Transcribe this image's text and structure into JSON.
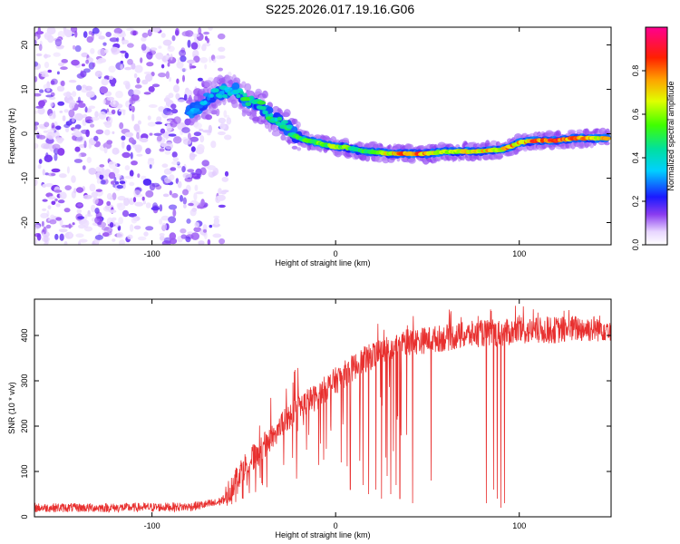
{
  "title": "S225.2026.017.19.16.G06",
  "colors": {
    "line": "#e8302f",
    "spectrum_noise": "#8a3cf0",
    "axis": "#000000"
  },
  "colorbar": {
    "label": "Normalized spectral amplitude",
    "ticks": [
      "0.0",
      "0.2",
      "0.4",
      "0.6",
      "0.8"
    ],
    "tick_values": [
      0.0,
      0.2,
      0.4,
      0.6,
      0.8
    ],
    "range": [
      0,
      1
    ]
  },
  "chart_data": [
    {
      "type": "heatmap",
      "name": "spectrogram",
      "xlabel": "Height of straight line (km)",
      "ylabel": "Frequency (Hz)",
      "xlim": [
        -164,
        150
      ],
      "ylim": [
        -25,
        24
      ],
      "xticks": [
        -100,
        0,
        100
      ],
      "xtick_labels": [
        "-100",
        "0",
        "100"
      ],
      "yticks": [
        -20,
        -10,
        0,
        10,
        20
      ],
      "ytick_labels": [
        "-20",
        "-10",
        "0",
        "10",
        "20"
      ],
      "noise_region_x": [
        -164,
        -70
      ],
      "ridge": {
        "x": [
          -80,
          -75,
          -70,
          -65,
          -60,
          -55,
          -50,
          -45,
          -40,
          -35,
          -30,
          -25,
          -20,
          -15,
          -10,
          -5,
          0,
          5,
          10,
          15,
          20,
          30,
          40,
          50,
          60,
          70,
          80,
          90,
          95,
          100,
          110,
          120,
          130,
          140,
          148
        ],
        "y": [
          5,
          6,
          8,
          9,
          9.5,
          10,
          8,
          7,
          6,
          4,
          2.5,
          1,
          -1,
          -1.5,
          -2,
          -2.5,
          -3,
          -3,
          -3.5,
          -4,
          -4,
          -4.5,
          -4.5,
          -4.5,
          -4,
          -4,
          -4,
          -3.5,
          -3,
          -2,
          -1.5,
          -1.5,
          -1,
          -1,
          -1
        ],
        "amplitude": [
          0.3,
          0.35,
          0.35,
          0.4,
          0.4,
          0.4,
          0.5,
          0.55,
          0.5,
          0.5,
          0.45,
          0.5,
          0.55,
          0.55,
          0.6,
          0.6,
          0.7,
          0.6,
          0.55,
          0.55,
          0.6,
          0.75,
          0.9,
          0.85,
          0.7,
          0.75,
          0.8,
          0.75,
          0.85,
          0.8,
          0.9,
          0.92,
          0.85,
          0.8,
          0.75
        ]
      }
    },
    {
      "type": "line",
      "name": "snr",
      "xlabel": "Height of straight line (km)",
      "ylabel": "SNR (10 * v/v)",
      "xlim": [
        -164,
        150
      ],
      "ylim": [
        0,
        480
      ],
      "xticks": [
        -100,
        0,
        100
      ],
      "xtick_labels": [
        "-100",
        "0",
        "100"
      ],
      "yticks": [
        0,
        100,
        200,
        300,
        400
      ],
      "ytick_labels": [
        "0",
        "100",
        "200",
        "300",
        "400"
      ],
      "envelope": {
        "x": [
          -164,
          -120,
          -80,
          -65,
          -60,
          -55,
          -50,
          -45,
          -40,
          -35,
          -30,
          -25,
          -20,
          -15,
          -10,
          -5,
          0,
          5,
          10,
          15,
          20,
          25,
          30,
          40,
          50,
          60,
          70,
          80,
          90,
          100,
          110,
          120,
          130,
          140,
          150
        ],
        "y": [
          20,
          20,
          22,
          30,
          40,
          80,
          110,
          130,
          150,
          175,
          200,
          220,
          240,
          255,
          265,
          285,
          300,
          315,
          330,
          345,
          355,
          365,
          375,
          385,
          390,
          395,
          400,
          405,
          405,
          410,
          410,
          412,
          415,
          415,
          418
        ]
      },
      "dropouts": {
        "x": [
          -5,
          3,
          8,
          15,
          18,
          22,
          25,
          28,
          30,
          33,
          35,
          42,
          52,
          82,
          86,
          88,
          90,
          92
        ],
        "y": [
          150,
          120,
          60,
          70,
          50,
          60,
          40,
          90,
          50,
          70,
          40,
          30,
          80,
          30,
          60,
          40,
          20,
          30
        ]
      },
      "noise_amplitude": 30
    }
  ]
}
